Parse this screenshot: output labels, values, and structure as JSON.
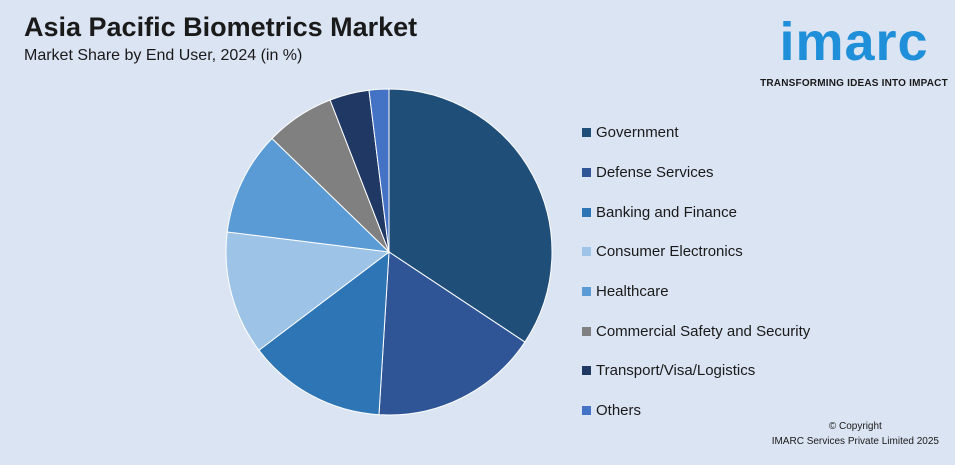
{
  "header": {
    "title": "Asia Pacific Biometrics Market",
    "subtitle": "Market Share by End User, 2024 (in %)"
  },
  "logo": {
    "word": "imarc",
    "tagline": "TRANSFORMING IDEAS INTO IMPACT",
    "color": "#1e8fd8"
  },
  "footer": {
    "copyright": "© Copyright",
    "company": "IMARC Services Private Limited 2025"
  },
  "chart_data": {
    "type": "pie",
    "start_angle_deg": 0,
    "direction": "clockwise",
    "slices": [
      {
        "label": "Government",
        "value": 35.0,
        "color": "#1f4e79"
      },
      {
        "label": "Defense Services",
        "value": 17.0,
        "color": "#2f5597"
      },
      {
        "label": "Banking and Finance",
        "value": 14.0,
        "color": "#2e75b6"
      },
      {
        "label": "Consumer Electronics",
        "value": 12.5,
        "color": "#9dc3e6"
      },
      {
        "label": "Healthcare",
        "value": 10.5,
        "color": "#5b9bd5"
      },
      {
        "label": "Commercial Safety and Security",
        "value": 7.0,
        "color": "#808080"
      },
      {
        "label": "Transport/Visa/Logistics",
        "value": 4.0,
        "color": "#203864"
      },
      {
        "label": "Others",
        "value": 2.0,
        "color": "#4472c4"
      }
    ]
  }
}
